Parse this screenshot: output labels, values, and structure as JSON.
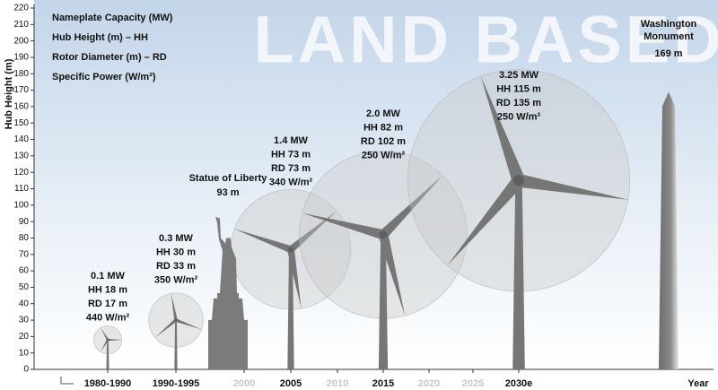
{
  "chart_data": {
    "type": "turbine",
    "title": "LAND BASED",
    "ylabel": "Hub Height (m)",
    "xlabel": "Year",
    "ylim": [
      0,
      220
    ],
    "yticks": [
      0,
      10,
      20,
      30,
      40,
      50,
      60,
      70,
      80,
      90,
      100,
      110,
      120,
      130,
      140,
      150,
      160,
      170,
      180,
      190,
      200,
      210,
      220
    ],
    "categories": [
      "1980-1990",
      "1990-1995",
      "2000",
      "2005",
      "2010",
      "2015",
      "2020",
      "2025",
      "2030e"
    ],
    "color": "#767676",
    "series": [
      {
        "name": "Nameplate Capacity (MW)",
        "values": [
          0.1,
          0.3,
          null,
          1.4,
          null,
          2.0,
          null,
          null,
          3.25
        ],
        "value_labels": [
          "0.1 MW",
          "0.3 MW",
          null,
          "1.4 MW",
          null,
          "2.0 MW",
          null,
          null,
          "3.25 MW"
        ]
      },
      {
        "name": "Hub Height (m) – HH",
        "values": [
          18,
          30,
          null,
          73,
          null,
          82,
          null,
          null,
          115
        ],
        "value_labels": [
          "HH 18 m",
          "HH 30 m",
          null,
          "HH 73 m",
          null,
          "HH 82 m",
          null,
          null,
          "HH 115 m"
        ]
      },
      {
        "name": "Rotor Diameter (m) – RD",
        "values": [
          17,
          33,
          null,
          73,
          null,
          102,
          null,
          null,
          135
        ],
        "value_labels": [
          "RD 17 m",
          "RD 33 m",
          null,
          "RD 73 m",
          null,
          "RD 102 m",
          null,
          null,
          "RD 135 m"
        ]
      },
      {
        "name": "Specific Power (W/m²)",
        "values": [
          440,
          350,
          null,
          340,
          null,
          250,
          null,
          null,
          250
        ],
        "value_labels": [
          "440 W/m²",
          "350 W/m²",
          null,
          "340 W/m²",
          null,
          "250 W/m²",
          null,
          null,
          "250 W/m²"
        ]
      }
    ],
    "landmarks": [
      {
        "name": "Statue of Liberty",
        "value": 93,
        "value_label": "93 m"
      },
      {
        "name": "Washington Monument",
        "value": 169,
        "value_label": "169 m"
      }
    ]
  }
}
